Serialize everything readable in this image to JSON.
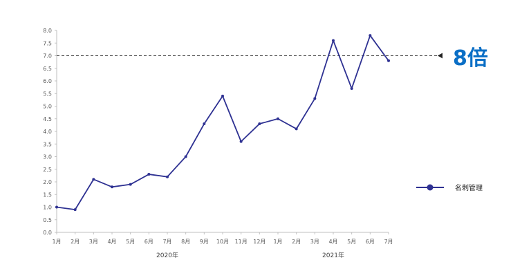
{
  "chart_data": {
    "type": "line",
    "categories": [
      "1月",
      "2月",
      "3月",
      "4月",
      "5月",
      "6月",
      "7月",
      "8月",
      "9月",
      "10月",
      "11月",
      "12月",
      "1月",
      "2月",
      "3月",
      "4月",
      "5月",
      "6月",
      "7月"
    ],
    "year_labels": [
      {
        "label": "2020年",
        "at_index": 6
      },
      {
        "label": "2021年",
        "at_index": 15
      }
    ],
    "series": [
      {
        "name": "名刺管理",
        "color": "#2e3192",
        "values": [
          1.0,
          0.9,
          2.1,
          1.8,
          1.9,
          2.3,
          2.2,
          3.0,
          4.3,
          5.4,
          3.6,
          4.3,
          4.5,
          4.1,
          5.3,
          7.6,
          5.7,
          7.8,
          6.8
        ]
      }
    ],
    "ylim": [
      0.0,
      8.0
    ],
    "yticks": [
      "0.0",
      "0.5",
      "1.0",
      "1.5",
      "2.0",
      "2.5",
      "3.0",
      "3.5",
      "4.0",
      "4.5",
      "5.0",
      "5.5",
      "6.0",
      "6.5",
      "7.0",
      "7.5",
      "8.0"
    ],
    "reference_line": {
      "value": 7.0,
      "style": "dashed",
      "color": "#555555"
    },
    "annotation": {
      "text": "8倍",
      "color": "#0b6fc6"
    },
    "legend_position": "right",
    "grid": false
  }
}
